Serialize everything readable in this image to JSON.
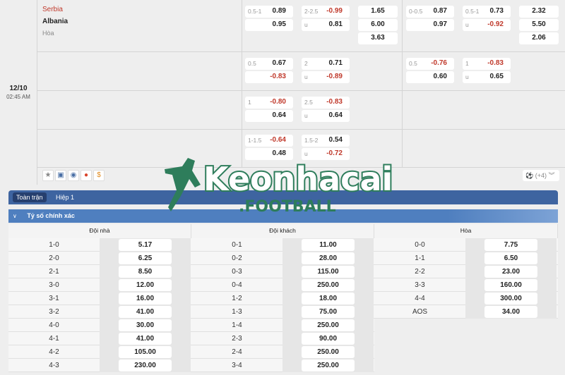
{
  "match": {
    "date": "12/10",
    "time": "02:45 AM",
    "home": "Serbia",
    "away": "Albania",
    "draw": "Hòa"
  },
  "odds_rows": [
    {
      "ft_hdp": {
        "line": "0.5-1",
        "home": "0.89",
        "away": "0.95"
      },
      "ft_ou": {
        "line": "2-2.5",
        "over": "-0.99",
        "under_label": "u",
        "under": "0.81"
      },
      "ft_1x2": [
        "1.65",
        "6.00",
        "3.63"
      ],
      "h1_hdp": {
        "line": "0-0.5",
        "home": "0.87",
        "away": "0.97"
      },
      "h1_ou": {
        "line": "0.5-1",
        "over": "0.73",
        "under_label": "u",
        "under": "-0.92"
      },
      "h1_1x2": [
        "2.32",
        "5.50",
        "2.06"
      ]
    },
    {
      "ft_hdp": {
        "line": "0.5",
        "home": "0.67",
        "away": "-0.83"
      },
      "ft_ou": {
        "line": "2",
        "over": "0.71",
        "under_label": "u",
        "under": "-0.89"
      },
      "h1_hdp": {
        "line": "0.5",
        "home": "-0.76",
        "away": "0.60"
      },
      "h1_ou": {
        "line": "1",
        "over": "-0.83",
        "under_label": "u",
        "under": "0.65"
      }
    },
    {
      "ft_hdp": {
        "line": "1",
        "home": "-0.80",
        "away": "0.64"
      },
      "ft_ou": {
        "line": "2.5",
        "over": "-0.83",
        "under_label": "u",
        "under": "0.64"
      }
    },
    {
      "ft_hdp": {
        "line": "1-1.5",
        "home": "-0.64",
        "away": "0.48"
      },
      "ft_ou": {
        "line": "1.5-2",
        "over": "0.54",
        "under_label": "u",
        "under": "-0.72"
      }
    }
  ],
  "action_icons": [
    "star-icon",
    "tv-icon",
    "eye-icon",
    "fire-icon",
    "coin-icon"
  ],
  "more": {
    "label": "(+4)"
  },
  "tabs": [
    {
      "label": "Toàn trận",
      "active": true
    },
    {
      "label": "Hiệp 1",
      "active": false
    }
  ],
  "section_title": "Tỷ số chính xác",
  "columns": [
    {
      "header": "Đội nhà",
      "rows": [
        [
          "1-0",
          "5.17"
        ],
        [
          "2-0",
          "6.25"
        ],
        [
          "2-1",
          "8.50"
        ],
        [
          "3-0",
          "12.00"
        ],
        [
          "3-1",
          "16.00"
        ],
        [
          "3-2",
          "41.00"
        ],
        [
          "4-0",
          "30.00"
        ],
        [
          "4-1",
          "41.00"
        ],
        [
          "4-2",
          "105.00"
        ],
        [
          "4-3",
          "230.00"
        ]
      ]
    },
    {
      "header": "Đội khách",
      "rows": [
        [
          "0-1",
          "11.00"
        ],
        [
          "0-2",
          "28.00"
        ],
        [
          "0-3",
          "115.00"
        ],
        [
          "0-4",
          "250.00"
        ],
        [
          "1-2",
          "18.00"
        ],
        [
          "1-3",
          "75.00"
        ],
        [
          "1-4",
          "250.00"
        ],
        [
          "2-3",
          "90.00"
        ],
        [
          "2-4",
          "250.00"
        ],
        [
          "3-4",
          "250.00"
        ]
      ]
    },
    {
      "header": "Hòa",
      "rows": [
        [
          "0-0",
          "7.75"
        ],
        [
          "1-1",
          "6.50"
        ],
        [
          "2-2",
          "23.00"
        ],
        [
          "3-3",
          "160.00"
        ],
        [
          "4-4",
          "300.00"
        ],
        [
          "AOS",
          "34.00"
        ]
      ]
    }
  ],
  "watermark": {
    "brand": "Keonhacai",
    "sub": ".FOOTBALL",
    "color": "#2e7d5b"
  },
  "colors": {
    "negative": "#c0392b",
    "tabbar": "#3e64a0",
    "subheader": "#4f7fbf"
  }
}
